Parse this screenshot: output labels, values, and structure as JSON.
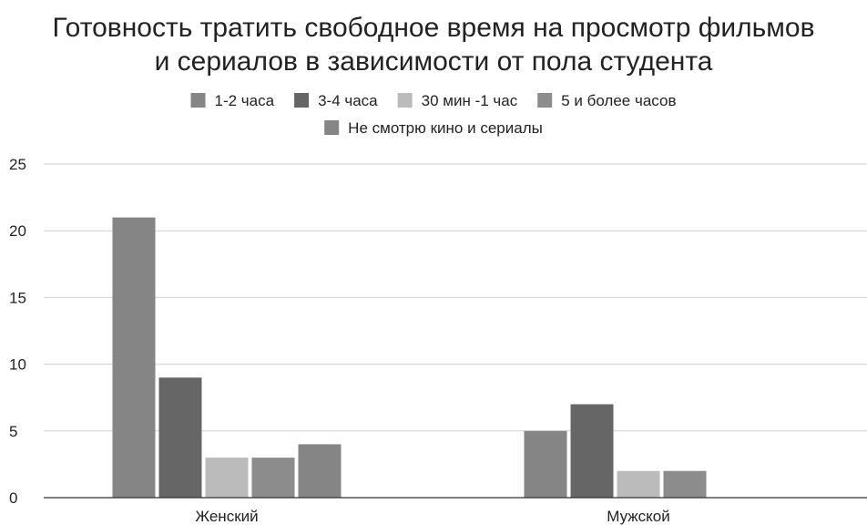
{
  "chart_data": {
    "type": "bar",
    "title": "Готовность тратить свободное время на просмотр фильмов и сериалов в зависимости от пола студента",
    "title_lines": [
      "Готовность тратить свободное время на просмотр фильмов",
      "и сериалов в зависимости от пола студента"
    ],
    "categories": [
      "Женский",
      "Мужской"
    ],
    "series": [
      {
        "name": "1-2 часа",
        "color": "#858585",
        "values": [
          21,
          5
        ]
      },
      {
        "name": "3-4 часа",
        "color": "#666666",
        "values": [
          9,
          7
        ]
      },
      {
        "name": "30 мин -1 час",
        "color": "#bbbbbb",
        "values": [
          3,
          2
        ]
      },
      {
        "name": "5 и более часов",
        "color": "#8c8c8c",
        "values": [
          3,
          2
        ]
      },
      {
        "name": "Не смотрю кино и сериалы",
        "color": "#858585",
        "values": [
          4,
          0
        ]
      }
    ],
    "ylim": [
      0,
      25
    ],
    "yticks": [
      0,
      5,
      10,
      15,
      20,
      25
    ],
    "xlabel": "",
    "ylabel": "",
    "grid": true,
    "legend_position": "top"
  }
}
